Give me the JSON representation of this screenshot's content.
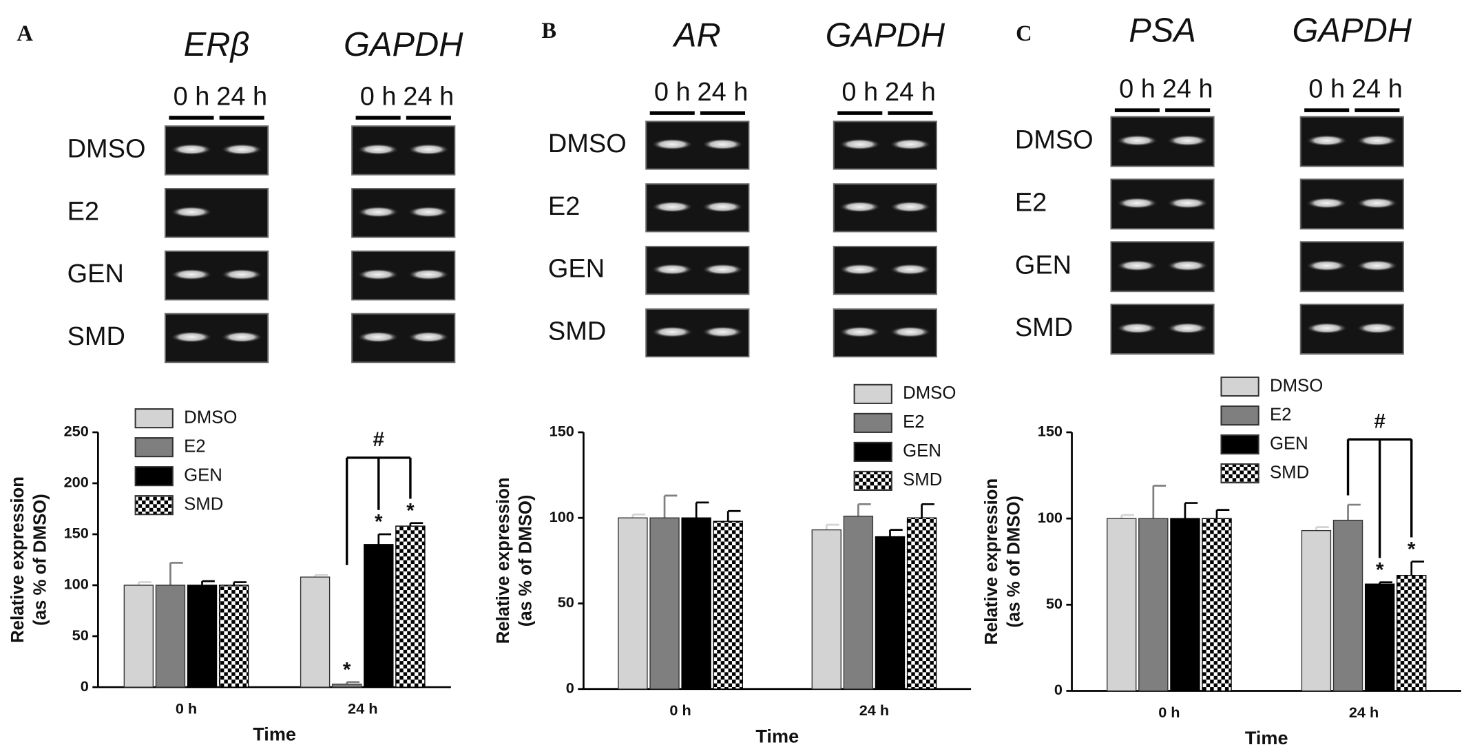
{
  "panels": [
    {
      "label": "A",
      "genes": [
        "ERβ",
        "GAPDH"
      ],
      "times": [
        "0 h",
        "24 h"
      ],
      "rows": [
        "DMSO",
        "E2",
        "GEN",
        "SMD"
      ]
    },
    {
      "label": "B",
      "genes": [
        "AR",
        "GAPDH"
      ],
      "times": [
        "0 h",
        "24 h"
      ],
      "rows": [
        "DMSO",
        "E2",
        "GEN",
        "SMD"
      ]
    },
    {
      "label": "C",
      "genes": [
        "PSA",
        "GAPDH"
      ],
      "times": [
        "0 h",
        "24 h"
      ],
      "rows": [
        "DMSO",
        "E2",
        "GEN",
        "SMD"
      ]
    }
  ],
  "chart_data": [
    {
      "type": "bar",
      "ylabel": [
        "Relative expression",
        "(as % of DMSO)"
      ],
      "xlabel": "Time",
      "categories": [
        "0 h",
        "24 h"
      ],
      "series": [
        {
          "name": "DMSO",
          "color": "#d3d3d3",
          "values": [
            100,
            108
          ],
          "errors": [
            3,
            2
          ]
        },
        {
          "name": "E2",
          "color": "#7f7f7f",
          "values": [
            100,
            3
          ],
          "errors": [
            22,
            2
          ]
        },
        {
          "name": "GEN",
          "color": "#000000",
          "values": [
            100,
            140
          ],
          "errors": [
            4,
            10
          ]
        },
        {
          "name": "SMD",
          "color": "#000000",
          "pattern": "checker",
          "values": [
            100,
            158
          ],
          "errors": [
            3,
            3
          ]
        }
      ],
      "ylim": [
        0,
        250
      ],
      "yticks": [
        0,
        50,
        100,
        150,
        200,
        250
      ],
      "annotations": [
        {
          "text": "*",
          "series": "E2",
          "category": "24 h"
        },
        {
          "text": "*",
          "series": "GEN",
          "category": "24 h"
        },
        {
          "text": "*",
          "series": "SMD",
          "category": "24 h"
        }
      ],
      "bracket": {
        "text": "#",
        "category": "24 h",
        "series": [
          "E2",
          "GEN",
          "SMD"
        ]
      }
    },
    {
      "type": "bar",
      "ylabel": [
        "Relative expression",
        "(as % of DMSO)"
      ],
      "xlabel": "Time",
      "categories": [
        "0 h",
        "24 h"
      ],
      "series": [
        {
          "name": "DMSO",
          "color": "#d3d3d3",
          "values": [
            100,
            93
          ],
          "errors": [
            2,
            3
          ]
        },
        {
          "name": "E2",
          "color": "#7f7f7f",
          "values": [
            100,
            101
          ],
          "errors": [
            13,
            7
          ]
        },
        {
          "name": "GEN",
          "color": "#000000",
          "values": [
            100,
            89
          ],
          "errors": [
            9,
            4
          ]
        },
        {
          "name": "SMD",
          "color": "#000000",
          "pattern": "checker",
          "values": [
            98,
            100
          ],
          "errors": [
            6,
            8
          ]
        }
      ],
      "ylim": [
        0,
        150
      ],
      "yticks": [
        0,
        50,
        100,
        150
      ]
    },
    {
      "type": "bar",
      "ylabel": [
        "Relative expression",
        "(as % of DMSO)"
      ],
      "xlabel": "Time",
      "categories": [
        "0 h",
        "24 h"
      ],
      "series": [
        {
          "name": "DMSO",
          "color": "#d3d3d3",
          "values": [
            100,
            93
          ],
          "errors": [
            2,
            2
          ]
        },
        {
          "name": "E2",
          "color": "#7f7f7f",
          "values": [
            100,
            99
          ],
          "errors": [
            19,
            9
          ]
        },
        {
          "name": "GEN",
          "color": "#000000",
          "values": [
            100,
            62
          ],
          "errors": [
            9,
            1
          ]
        },
        {
          "name": "SMD",
          "color": "#000000",
          "pattern": "checker",
          "values": [
            100,
            67
          ],
          "errors": [
            5,
            8
          ]
        }
      ],
      "ylim": [
        0,
        150
      ],
      "yticks": [
        0,
        50,
        100,
        150
      ],
      "annotations": [
        {
          "text": "*",
          "series": "GEN",
          "category": "24 h"
        },
        {
          "text": "*",
          "series": "SMD",
          "category": "24 h"
        }
      ],
      "bracket": {
        "text": "#",
        "category": "24 h",
        "series": [
          "E2",
          "GEN",
          "SMD"
        ]
      }
    }
  ]
}
